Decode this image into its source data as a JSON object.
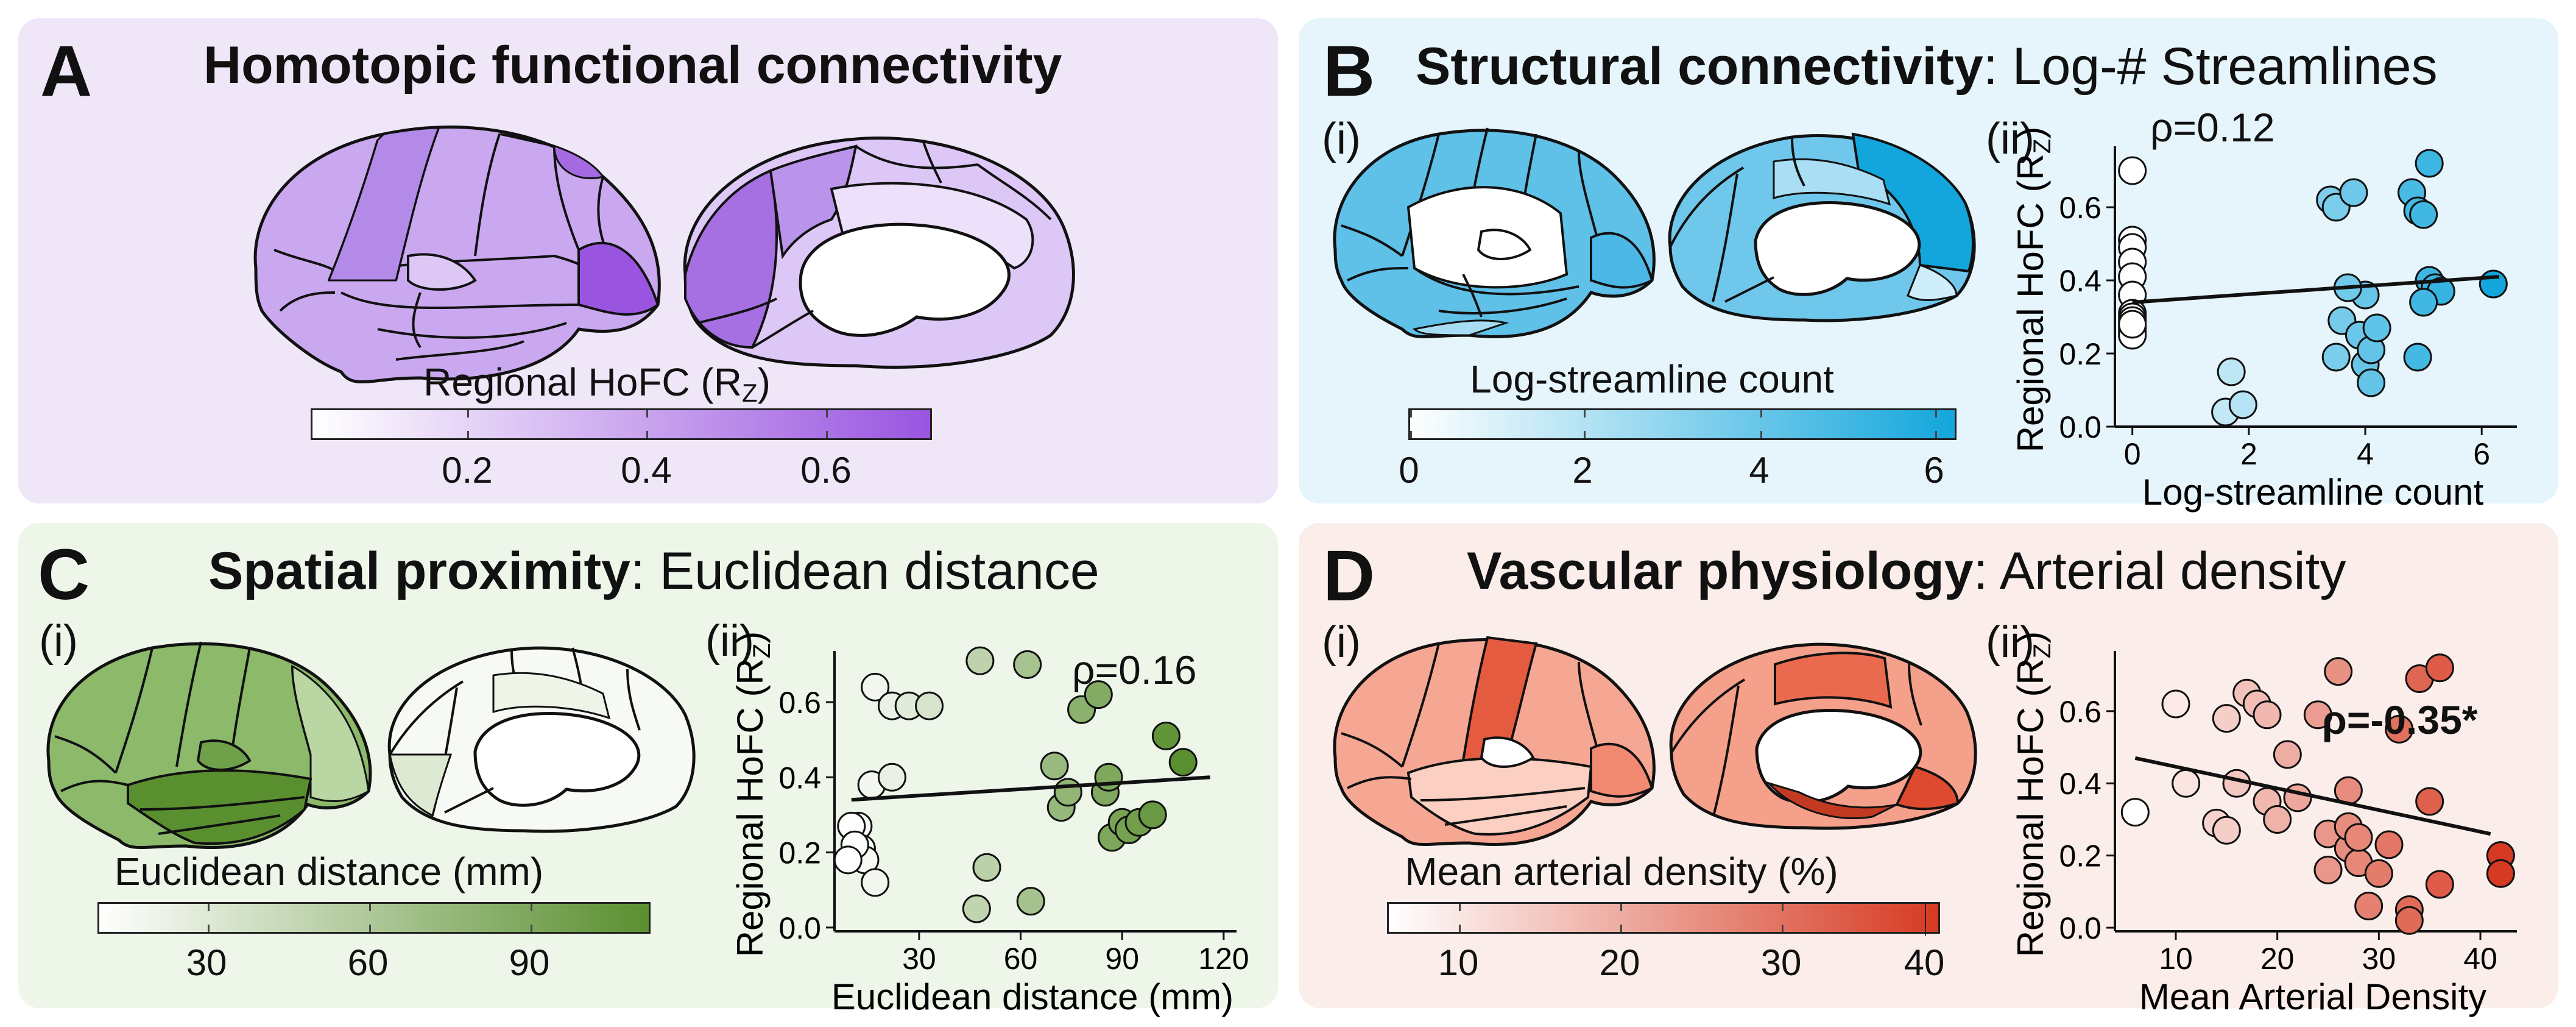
{
  "panel_a": {
    "letter": "A",
    "title": "Homotopic functional connectivity",
    "colorbar_label": "Regional HoFC (R",
    "colorbar_label_sub": "Z",
    "colorbar_label_end": ")",
    "colorbar_ticks": [
      "0.2",
      "0.4",
      "0.6"
    ],
    "color_low": "#ffffff",
    "color_high": "#9a55e0"
  },
  "panel_b": {
    "letter": "B",
    "title_bold": "Structural connectivity",
    "title_rest": ": Log-# Streamlines",
    "sub_i": "(i)",
    "sub_ii": "(ii)",
    "colorbar_label": "Log-streamline count",
    "colorbar_ticks": [
      "0",
      "2",
      "4",
      "6"
    ],
    "color_low": "#ffffff",
    "color_high": "#13a6dc",
    "rho": "ρ=0.12"
  },
  "panel_c": {
    "letter": "C",
    "title_bold": "Spatial proximity",
    "title_rest": ": Euclidean distance",
    "sub_i": "(i)",
    "sub_ii": "(ii)",
    "colorbar_label": "Euclidean distance (mm)",
    "colorbar_ticks": [
      "30",
      "60",
      "90"
    ],
    "color_low": "#ffffff",
    "color_high": "#5a8f2f",
    "rho": "ρ=0.16"
  },
  "panel_d": {
    "letter": "D",
    "title_bold": "Vascular physiology",
    "title_rest": ": Arterial density",
    "sub_i": "(i)",
    "sub_ii": "(ii)",
    "colorbar_label": "Mean arterial density (%)",
    "colorbar_ticks": [
      "10",
      "20",
      "30",
      "40"
    ],
    "color_low": "#ffffff",
    "color_high": "#d63a22",
    "rho": "ρ=-0.35*"
  },
  "chart_data": [
    {
      "type": "scatter",
      "panel": "B(ii)",
      "xlabel": "Log-streamline count",
      "ylabel": "Regional HoFC (R_Z)",
      "xlim": [
        -0.3,
        6.5
      ],
      "ylim": [
        0,
        0.75
      ],
      "xticks": [
        "0",
        "2",
        "4",
        "6"
      ],
      "yticks": [
        "0.0",
        "0.2",
        "0.4",
        "0.6"
      ],
      "annotation": "ρ=0.12",
      "fit_line": {
        "x": [
          0,
          6.3
        ],
        "y": [
          0.34,
          0.41
        ]
      },
      "x": [
        0,
        0,
        0,
        0,
        0,
        0,
        0,
        0,
        0,
        0,
        0,
        0,
        0,
        1.6,
        1.9,
        1.7,
        3.4,
        3.5,
        3.5,
        3.6,
        3.8,
        3.9,
        4.0,
        4.1,
        4.1,
        4.2,
        4.0,
        3.7,
        4.8,
        4.9,
        5.0,
        5.1,
        5.1,
        5.2,
        5.3,
        5.0,
        4.9,
        6.2
      ],
      "y": [
        0.7,
        0.51,
        0.49,
        0.45,
        0.41,
        0.36,
        0.31,
        0.3,
        0.29,
        0.27,
        0.26,
        0.25,
        0.28,
        0.04,
        0.06,
        0.15,
        0.62,
        0.6,
        0.19,
        0.29,
        0.64,
        0.25,
        0.17,
        0.21,
        0.12,
        0.27,
        0.36,
        0.38,
        0.64,
        0.59,
        0.58,
        0.72,
        0.4,
        0.38,
        0.37,
        0.34,
        0.19,
        0.39
      ]
    },
    {
      "type": "scatter",
      "panel": "C(ii)",
      "xlabel": "Euclidean distance (mm)",
      "ylabel": "Regional HoFC (R_Z)",
      "xlim": [
        5,
        122
      ],
      "ylim": [
        -0.01,
        0.72
      ],
      "xticks": [
        "30",
        "60",
        "90",
        "120"
      ],
      "yticks": [
        "0.0",
        "0.2",
        "0.4",
        "0.6"
      ],
      "annotation": "ρ=0.16",
      "fit_line": {
        "x": [
          10,
          116
        ],
        "y": [
          0.34,
          0.4
        ]
      },
      "x": [
        17,
        22,
        27,
        33,
        12,
        10,
        13,
        14,
        16,
        11,
        9,
        17,
        22,
        48,
        62,
        70,
        47,
        50,
        63,
        72,
        78,
        74,
        83,
        87,
        90,
        92,
        95,
        99,
        103,
        108,
        85,
        86
      ],
      "y": [
        0.64,
        0.59,
        0.59,
        0.59,
        0.27,
        0.27,
        0.21,
        0.18,
        0.38,
        0.22,
        0.18,
        0.12,
        0.4,
        0.71,
        0.7,
        0.43,
        0.05,
        0.16,
        0.07,
        0.32,
        0.58,
        0.36,
        0.62,
        0.24,
        0.28,
        0.26,
        0.28,
        0.3,
        0.51,
        0.44,
        0.36,
        0.4
      ]
    },
    {
      "type": "scatter",
      "panel": "D(ii)",
      "xlabel": "Mean Arterial Density",
      "ylabel": "Regional HoFC (R_Z)",
      "xlim": [
        4,
        43
      ],
      "ylim": [
        -0.01,
        0.75
      ],
      "xticks": [
        "10",
        "20",
        "30",
        "40"
      ],
      "yticks": [
        "0.0",
        "0.2",
        "0.4",
        "0.6"
      ],
      "annotation": "ρ=-0.35*",
      "fit_line": {
        "x": [
          6,
          41
        ],
        "y": [
          0.47,
          0.26
        ]
      },
      "x": [
        6,
        10,
        11,
        14,
        15,
        16,
        17,
        18,
        19,
        19,
        20,
        21,
        24,
        25,
        26,
        27,
        27,
        28,
        28,
        30,
        34,
        36,
        36,
        33,
        35,
        33,
        15,
        22,
        25,
        27,
        29,
        31,
        32,
        42,
        42
      ],
      "y": [
        0.32,
        0.62,
        0.4,
        0.29,
        0.27,
        0.4,
        0.65,
        0.62,
        0.59,
        0.35,
        0.3,
        0.48,
        0.59,
        0.26,
        0.71,
        0.22,
        0.28,
        0.18,
        0.25,
        0.15,
        0.69,
        0.72,
        0.12,
        0.05,
        0.35,
        0.02,
        0.58,
        0.36,
        0.16,
        0.38,
        0.06,
        0.23,
        0.55,
        0.2,
        0.15
      ]
    }
  ]
}
